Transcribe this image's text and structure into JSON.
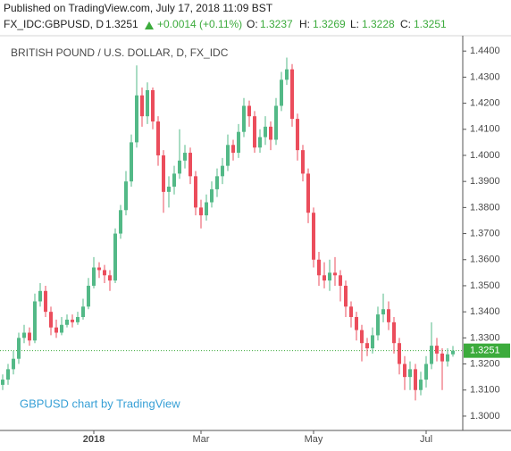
{
  "header": {
    "published": "Published on TradingView.com, July 17, 2018 11:09 BST",
    "symbol": "FX_IDC:GBPUSD, D",
    "last": "1.3251",
    "change": "+0.0014 (+0.11%)",
    "o_label": "O:",
    "o": "1.3237",
    "h_label": "H:",
    "h": "1.3269",
    "l_label": "L:",
    "l": "1.3228",
    "c_label": "C:",
    "c": "1.3251"
  },
  "chart_data": {
    "type": "candlestick",
    "title": "BRITISH POUND / U.S. DOLLAR, D, FX_IDC",
    "watermark": "GBPUSD chart by TradingView",
    "up_color": "#53b987",
    "down_color": "#eb4d5c",
    "categories": [
      null,
      null,
      null,
      null,
      null,
      null,
      null,
      null,
      null,
      null,
      null,
      null,
      null,
      null,
      null,
      null,
      null,
      "2018",
      null,
      null,
      null,
      null,
      null,
      null,
      null,
      null,
      null,
      null,
      null,
      null,
      null,
      null,
      null,
      null,
      null,
      null,
      null,
      "Mar",
      null,
      null,
      null,
      null,
      null,
      null,
      null,
      null,
      null,
      null,
      null,
      null,
      null,
      null,
      null,
      null,
      null,
      null,
      null,
      null,
      "May",
      null,
      null,
      null,
      null,
      null,
      null,
      null,
      null,
      null,
      null,
      null,
      null,
      null,
      null,
      null,
      null,
      null,
      null,
      null,
      null,
      "Jul",
      null,
      null,
      null,
      null,
      null
    ],
    "open": [
      1.312,
      1.314,
      1.318,
      1.322,
      1.33,
      1.332,
      1.329,
      1.344,
      1.348,
      1.34,
      1.334,
      1.332,
      1.335,
      1.337,
      1.336,
      1.338,
      1.342,
      1.35,
      1.357,
      1.356,
      1.354,
      1.352,
      1.37,
      1.379,
      1.39,
      1.405,
      1.423,
      1.415,
      1.425,
      1.413,
      1.4,
      1.386,
      1.388,
      1.393,
      1.398,
      1.401,
      1.392,
      1.38,
      1.377,
      1.382,
      1.387,
      1.392,
      1.396,
      1.404,
      1.401,
      1.409,
      1.419,
      1.415,
      1.403,
      1.407,
      1.411,
      1.406,
      1.419,
      1.429,
      1.433,
      1.414,
      1.402,
      1.393,
      1.378,
      1.36,
      1.354,
      1.352,
      1.355,
      1.354,
      1.35,
      1.342,
      1.338,
      1.333,
      1.328,
      1.326,
      1.331,
      1.339,
      1.341,
      1.336,
      1.328,
      1.32,
      1.315,
      1.318,
      1.31,
      1.314,
      1.32,
      1.327,
      1.324,
      1.321,
      1.3237
    ],
    "high": [
      1.316,
      1.32,
      1.325,
      1.332,
      1.335,
      1.334,
      1.347,
      1.351,
      1.35,
      1.342,
      1.337,
      1.338,
      1.339,
      1.339,
      1.34,
      1.345,
      1.353,
      1.361,
      1.359,
      1.358,
      1.356,
      1.372,
      1.381,
      1.394,
      1.408,
      1.4345,
      1.426,
      1.428,
      1.426,
      1.415,
      1.402,
      1.392,
      1.396,
      1.41,
      1.404,
      1.403,
      1.394,
      1.383,
      1.385,
      1.39,
      1.395,
      1.399,
      1.408,
      1.406,
      1.412,
      1.422,
      1.421,
      1.417,
      1.41,
      1.415,
      1.413,
      1.422,
      1.432,
      1.4375,
      1.435,
      1.416,
      1.404,
      1.395,
      1.38,
      1.363,
      1.359,
      1.36,
      1.361,
      1.356,
      1.352,
      1.344,
      1.34,
      1.335,
      1.33,
      1.334,
      1.342,
      1.347,
      1.344,
      1.338,
      1.33,
      1.323,
      1.321,
      1.32,
      1.317,
      1.323,
      1.336,
      1.33,
      1.326,
      1.326,
      1.3269
    ],
    "low": [
      1.31,
      1.312,
      1.316,
      1.32,
      1.328,
      1.327,
      1.328,
      1.342,
      1.338,
      1.331,
      1.33,
      1.331,
      1.334,
      1.334,
      1.335,
      1.337,
      1.341,
      1.349,
      1.353,
      1.351,
      1.348,
      1.351,
      1.368,
      1.377,
      1.388,
      1.403,
      1.411,
      1.412,
      1.41,
      1.396,
      1.378,
      1.38,
      1.385,
      1.391,
      1.395,
      1.389,
      1.377,
      1.372,
      1.375,
      1.38,
      1.384,
      1.389,
      1.394,
      1.398,
      1.399,
      1.407,
      1.411,
      1.401,
      1.401,
      1.404,
      1.402,
      1.404,
      1.417,
      1.427,
      1.411,
      1.398,
      1.39,
      1.374,
      1.357,
      1.35,
      1.349,
      1.348,
      1.35,
      1.344,
      1.338,
      1.334,
      1.329,
      1.321,
      1.323,
      1.324,
      1.329,
      1.336,
      1.333,
      1.324,
      1.316,
      1.31,
      1.31,
      1.306,
      1.308,
      1.311,
      1.318,
      1.321,
      1.31,
      1.319,
      1.3228
    ],
    "close": [
      1.314,
      1.318,
      1.322,
      1.33,
      1.332,
      1.329,
      1.344,
      1.348,
      1.34,
      1.334,
      1.332,
      1.335,
      1.337,
      1.336,
      1.338,
      1.342,
      1.35,
      1.357,
      1.356,
      1.354,
      1.352,
      1.37,
      1.379,
      1.39,
      1.405,
      1.423,
      1.415,
      1.425,
      1.413,
      1.4,
      1.386,
      1.388,
      1.393,
      1.398,
      1.401,
      1.392,
      1.38,
      1.377,
      1.382,
      1.387,
      1.392,
      1.396,
      1.404,
      1.401,
      1.409,
      1.419,
      1.415,
      1.403,
      1.407,
      1.411,
      1.406,
      1.419,
      1.429,
      1.433,
      1.414,
      1.402,
      1.393,
      1.378,
      1.36,
      1.354,
      1.352,
      1.355,
      1.354,
      1.35,
      1.342,
      1.338,
      1.333,
      1.328,
      1.326,
      1.331,
      1.339,
      1.341,
      1.336,
      1.328,
      1.32,
      1.315,
      1.318,
      1.31,
      1.314,
      1.32,
      1.327,
      1.324,
      1.321,
      1.3237,
      1.3251
    ],
    "price_line": {
      "value": 1.3251,
      "label": "1.3251"
    },
    "ylim": [
      1.2945,
      1.4452
    ],
    "yticks": [
      {
        "value": 1.3,
        "label": "1.3000"
      },
      {
        "value": 1.31,
        "label": "1.3100"
      },
      {
        "value": 1.32,
        "label": "1.3200"
      },
      {
        "value": 1.33,
        "label": "1.3300"
      },
      {
        "value": 1.34,
        "label": "1.3400"
      },
      {
        "value": 1.35,
        "label": "1.3500"
      },
      {
        "value": 1.36,
        "label": "1.3600"
      },
      {
        "value": 1.37,
        "label": "1.3700"
      },
      {
        "value": 1.38,
        "label": "1.3800"
      },
      {
        "value": 1.39,
        "label": "1.3900"
      },
      {
        "value": 1.4,
        "label": "1.4000"
      },
      {
        "value": 1.41,
        "label": "1.4100"
      },
      {
        "value": 1.42,
        "label": "1.4200"
      },
      {
        "value": 1.43,
        "label": "1.4300"
      },
      {
        "value": 1.44,
        "label": "1.4400"
      }
    ]
  }
}
